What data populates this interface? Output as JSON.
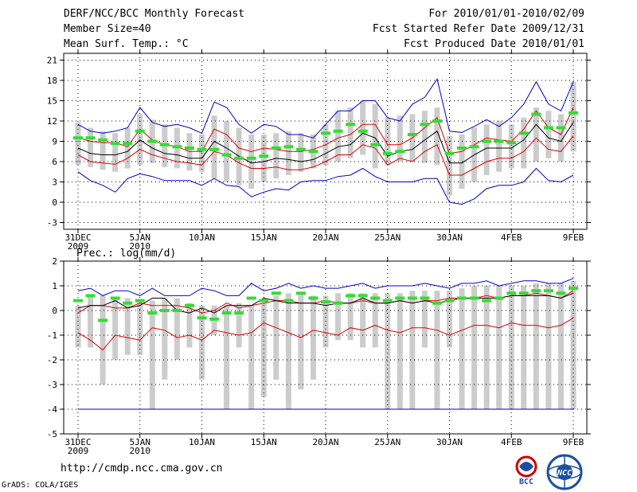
{
  "header": {
    "title": "DERF/NCC/BCC Monthly Forecast",
    "member_size": "Member Size=40",
    "variable": "Mean Surf. Temp.: °C",
    "period": "For 2010/01/01-2010/02/09",
    "refer_date": "Fcst Started Refer Date 2009/12/31",
    "produced_date": "Fcst Produced Date 2010/01/01"
  },
  "footer": {
    "url": "http://cmdp.ncc.cma.gov.cn",
    "credit": "GrADS: COLA/IGES",
    "logo_bcc": "BCC",
    "logo_ncc": "NCC"
  },
  "colors": {
    "box": "#cccccc",
    "mean": "#000000",
    "spread": "#dd0000",
    "extreme": "#0000cc",
    "obs": "#33dd33",
    "grid": "#000000"
  },
  "chart_data": [
    {
      "type": "line",
      "name": "temperature",
      "title": "Mean Surf. Temp.: °C",
      "ylim": [
        -4,
        22
      ],
      "yticks": [
        -3,
        0,
        3,
        6,
        9,
        12,
        15,
        18,
        21
      ],
      "days": 40,
      "xtick_days": [
        0,
        5,
        10,
        15,
        20,
        25,
        30,
        35,
        40
      ],
      "xtick_labels": [
        "31DEC",
        "5JAN",
        "10JAN",
        "15JAN",
        "20JAN",
        "25JAN",
        "30JAN",
        "4FEB",
        "9FEB"
      ],
      "xtick_sublabels": [
        "2009",
        "2010",
        "",
        "",
        "",
        "",
        "",
        "",
        ""
      ],
      "box_low": [
        5.5,
        5.2,
        4.8,
        4.5,
        5,
        5.5,
        5.8,
        5.2,
        5,
        4.7,
        4.5,
        3.5,
        3,
        2.5,
        2,
        3,
        3.5,
        4,
        4.5,
        5,
        5.5,
        6,
        6.5,
        7,
        5,
        5.5,
        6,
        6,
        5.8,
        5.5,
        1,
        2,
        3,
        4,
        4.5,
        5,
        5,
        6,
        6.5,
        6,
        7.5
      ],
      "box_high": [
        11.8,
        11,
        10.5,
        10.2,
        11,
        13,
        12.2,
        11.5,
        11,
        10.2,
        10,
        12.8,
        12,
        11,
        10,
        10,
        10.2,
        10.5,
        10.2,
        10,
        11.5,
        13.5,
        14,
        15,
        14.5,
        12.5,
        12.8,
        13,
        13.5,
        14,
        9.8,
        10,
        11,
        11.5,
        12,
        11.5,
        12.5,
        14,
        13.5,
        13,
        17.8
      ],
      "series": [
        {
          "name": "max",
          "color_key": "extreme",
          "values": [
            11.5,
            10.5,
            10.2,
            10.5,
            11,
            14,
            11.8,
            11.2,
            11.5,
            11,
            10.2,
            14.8,
            14,
            11.5,
            10.2,
            11.5,
            11.2,
            10,
            10,
            9.5,
            11.5,
            13.5,
            13.5,
            15,
            15,
            12.5,
            12,
            14.5,
            15.5,
            18.2,
            10.5,
            10.3,
            11.2,
            12.2,
            11.2,
            12.5,
            14.5,
            17.8,
            14.5,
            13.5,
            17.8
          ]
        },
        {
          "name": "upper",
          "color_key": "spread",
          "values": [
            9.5,
            9,
            8.8,
            8.8,
            8.2,
            10.8,
            9.2,
            8.5,
            8.2,
            7.5,
            7.5,
            10.8,
            10,
            8,
            7.5,
            8,
            7.8,
            7.5,
            7.5,
            7.8,
            8.5,
            9.5,
            10,
            11.5,
            11.5,
            8.5,
            8.5,
            9.5,
            11,
            12.5,
            7.2,
            7.5,
            8.5,
            9.5,
            9.2,
            9,
            10.8,
            13.5,
            11,
            10,
            14
          ]
        },
        {
          "name": "mean",
          "color_key": "mean",
          "values": [
            8,
            7.2,
            7,
            7,
            7.5,
            9.2,
            8,
            7.2,
            7,
            6.5,
            6.5,
            9,
            8,
            6.8,
            5.8,
            6,
            6.5,
            6.3,
            6,
            6.3,
            7.2,
            8.2,
            8.5,
            10.2,
            9.5,
            6.8,
            7.5,
            7.8,
            9.2,
            10.5,
            5.8,
            5.8,
            7,
            8,
            8,
            8,
            9.2,
            11.5,
            9.5,
            9,
            11.8
          ]
        },
        {
          "name": "lower",
          "color_key": "spread",
          "values": [
            7,
            6,
            5.8,
            5.6,
            6.5,
            7.8,
            7,
            6.5,
            6,
            5.8,
            5.5,
            7.5,
            7,
            5.8,
            5,
            5,
            5.2,
            4.8,
            4.8,
            5.2,
            6,
            7,
            7,
            8.5,
            8,
            5.5,
            6.5,
            6,
            7.5,
            8.5,
            4,
            4,
            5,
            6,
            6.5,
            6.5,
            7.5,
            9.5,
            7.8,
            7.5,
            9.8
          ]
        },
        {
          "name": "min",
          "color_key": "extreme",
          "values": [
            4.5,
            3.2,
            2.5,
            1.5,
            3.5,
            4.2,
            3.8,
            3.2,
            3.2,
            3.2,
            2.5,
            3.5,
            2.5,
            2.3,
            0.8,
            1.5,
            2,
            1.8,
            3,
            3.2,
            3.2,
            3.8,
            4,
            5,
            3.8,
            3,
            3,
            3,
            3.5,
            3.5,
            0,
            -0.3,
            0.5,
            2,
            2.5,
            2.5,
            3,
            5,
            3.2,
            3,
            4
          ]
        }
      ],
      "obs_days": [
        0,
        1,
        2,
        3,
        4,
        5,
        6,
        7,
        8,
        9,
        10,
        11,
        12,
        13,
        14,
        15,
        16,
        17,
        18,
        19,
        20,
        21,
        22,
        23,
        24,
        25,
        26,
        27,
        28,
        29,
        30,
        31,
        32,
        33,
        34,
        35,
        36,
        37,
        38,
        39,
        40
      ],
      "obs": [
        9.5,
        9.5,
        9.2,
        8.7,
        8.7,
        10.5,
        9,
        8.5,
        8.2,
        8,
        7.8,
        7.8,
        7,
        6.5,
        6.5,
        6.8,
        8,
        8.2,
        7.8,
        7.5,
        10.2,
        10.5,
        11.5,
        10.5,
        8.5,
        7.2,
        7.5,
        10,
        11.5,
        12,
        7.2,
        8,
        8.2,
        9,
        9,
        8.8,
        10.2,
        13,
        11,
        11,
        13.2
      ]
    },
    {
      "type": "line",
      "name": "precipitation",
      "title": "Prec.: log(mm/d)",
      "ylim": [
        -5,
        2
      ],
      "yticks": [
        -5,
        -4,
        -3,
        -2,
        -1,
        0,
        1,
        2
      ],
      "days": 40,
      "xtick_days": [
        0,
        5,
        10,
        15,
        20,
        25,
        30,
        35,
        40
      ],
      "xtick_labels": [
        "31DEC",
        "5JAN",
        "10JAN",
        "15JAN",
        "20JAN",
        "25JAN",
        "30JAN",
        "4FEB",
        "9FEB"
      ],
      "xtick_sublabels": [
        "2009",
        "2010",
        "",
        "",
        "",
        "",
        "",
        "",
        ""
      ],
      "box_low": [
        -1.5,
        -1.5,
        -3,
        -2,
        -1.8,
        -1.8,
        -4,
        -2.8,
        -2,
        -1.5,
        -2.8,
        -1,
        -4,
        -1.5,
        -4,
        -3.5,
        -2.8,
        -4,
        -3.2,
        -2.8,
        -1.5,
        -1.2,
        -1.2,
        -1.5,
        -1.5,
        -4,
        -4,
        -4,
        -1.5,
        -4,
        -1.5,
        -4,
        -4,
        -4,
        -4,
        -4,
        -4,
        -4,
        -4,
        -4,
        -4
      ],
      "box_high": [
        0.2,
        0.6,
        0.6,
        0.5,
        0.5,
        0.4,
        0.4,
        0.5,
        0.5,
        0.3,
        0.2,
        0.2,
        0.2,
        0.3,
        0.2,
        0.3,
        0.6,
        0.7,
        0.7,
        0.6,
        0.6,
        0.7,
        0.7,
        0.7,
        0.7,
        0.7,
        0.7,
        0.8,
        0.8,
        0.8,
        0.8,
        0.9,
        1,
        1,
        1,
        1,
        1,
        1.1,
        1.1,
        1.1,
        1.2
      ],
      "series": [
        {
          "name": "max",
          "color_key": "extreme",
          "values": [
            0.8,
            0.9,
            0.6,
            0.8,
            0.8,
            0.6,
            0.9,
            0.6,
            0.6,
            0.6,
            0.9,
            0.8,
            0.6,
            0.6,
            1.1,
            0.8,
            0.9,
            1.1,
            0.9,
            1,
            0.9,
            0.9,
            1,
            1.1,
            0.9,
            1,
            1,
            1,
            1.1,
            1,
            0.9,
            1.1,
            1.1,
            1.2,
            1,
            1.1,
            1.2,
            1.2,
            1.1,
            1.1,
            1.3
          ]
        },
        {
          "name": "upper",
          "color_key": "spread",
          "values": [
            -0.1,
            0.2,
            0.2,
            0.1,
            0.1,
            0.3,
            0.2,
            0.2,
            0.2,
            0.1,
            -0.1,
            0,
            0.3,
            0.1,
            0.2,
            0.3,
            0.4,
            0.4,
            0.3,
            0.3,
            0.4,
            0.3,
            0.3,
            0.4,
            0.3,
            0.3,
            0.4,
            0.3,
            0.4,
            0.4,
            0.5,
            0.5,
            0.5,
            0.6,
            0.5,
            0.6,
            0.6,
            0.7,
            0.6,
            0.5,
            0.8
          ]
        },
        {
          "name": "mean",
          "color_key": "mean",
          "values": [
            0.1,
            0.2,
            0.2,
            0.4,
            0.1,
            0.2,
            0.5,
            0.5,
            0,
            -0.1,
            0.1,
            -0.1,
            0.2,
            0.2,
            0.2,
            0.5,
            0.4,
            0.3,
            0.3,
            0.3,
            0.2,
            0.3,
            0.3,
            0.5,
            0.3,
            0.3,
            0.4,
            0.3,
            0.4,
            0.3,
            0.4,
            0.5,
            0.5,
            0.5,
            0.5,
            0.6,
            0.6,
            0.6,
            0.6,
            0.5,
            0.7
          ]
        },
        {
          "name": "lower",
          "color_key": "spread",
          "values": [
            -0.9,
            -1.2,
            -1.6,
            -1,
            -1.1,
            -1.2,
            -0.7,
            -0.8,
            -1.1,
            -1,
            -1.2,
            -0.8,
            -0.9,
            -1,
            -0.9,
            -0.5,
            -0.7,
            -0.9,
            -1.1,
            -0.8,
            -0.9,
            -1,
            -0.7,
            -0.8,
            -0.6,
            -0.8,
            -0.9,
            -0.7,
            -0.7,
            -0.8,
            -1,
            -0.8,
            -0.6,
            -0.6,
            -0.7,
            -0.5,
            -0.6,
            -0.6,
            -0.7,
            -0.6,
            -0.3
          ]
        },
        {
          "name": "min",
          "color_key": "extreme",
          "values": [
            -4,
            -4,
            -4,
            -4,
            -4,
            -4,
            -4,
            -4,
            -4,
            -4,
            -4,
            -4,
            -4,
            -4,
            -4,
            -4,
            -4,
            -4,
            -4,
            -4,
            -4,
            -4,
            -4,
            -4,
            -4,
            -4,
            -4,
            -4,
            -4,
            -4,
            -4,
            -4,
            -4,
            -4,
            -4,
            -4,
            -4,
            -4,
            -4,
            -4,
            -4
          ]
        }
      ],
      "obs_days": [
        0,
        1,
        2,
        3,
        4,
        5,
        6,
        7,
        8,
        9,
        10,
        11,
        12,
        13,
        14,
        15,
        16,
        17,
        18,
        19,
        20,
        21,
        22,
        23,
        24,
        25,
        26,
        27,
        28,
        29,
        30,
        31,
        32,
        33,
        34,
        35,
        36,
        37,
        38,
        39,
        40
      ],
      "obs": [
        0.4,
        0.6,
        -0.4,
        0.5,
        0.3,
        0.4,
        -0.1,
        0,
        0,
        0.2,
        -0.3,
        -0.35,
        -0.1,
        -0.1,
        0.5,
        0.4,
        0.7,
        0.4,
        0.7,
        0.5,
        0.35,
        0.3,
        0.6,
        0.6,
        0.5,
        0.4,
        0.5,
        0.5,
        0.5,
        0.3,
        0.4,
        0.5,
        0.5,
        0.4,
        0.5,
        0.7,
        0.7,
        0.8,
        0.8,
        0.7,
        0.9
      ]
    }
  ]
}
